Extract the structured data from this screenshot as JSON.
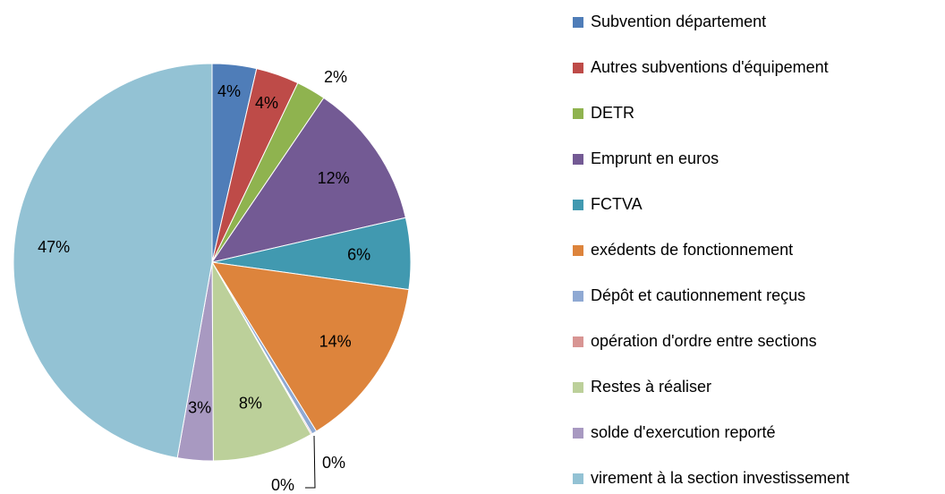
{
  "chart_data": {
    "type": "pie",
    "categories": [
      "Subvention département",
      "Autres subventions d'équipement",
      "DETR",
      "Emprunt en euros",
      "FCTVA",
      "exédents de fonctionnement",
      "Dépôt et cautionnement reçus",
      "opération d'ordre entre sections",
      "Restes à réaliser",
      "solde d'exercution reporté",
      "virement à la section investissement"
    ],
    "values": [
      3.6,
      3.5,
      2.4,
      11.9,
      5.8,
      14.0,
      0.4,
      0.1,
      8.2,
      2.9,
      47.2
    ],
    "value_labels": [
      "4%",
      "4%",
      "2%",
      "12%",
      "6%",
      "14%",
      "0%",
      "0%",
      "8%",
      "3%",
      "47%"
    ],
    "colors": [
      "#4f7db8",
      "#be4b48",
      "#8fb34f",
      "#735a94",
      "#4199b0",
      "#dd843c",
      "#8fa9d3",
      "#d89593",
      "#bcd09a",
      "#a899c1",
      "#93c2d4"
    ],
    "legend": "right"
  }
}
